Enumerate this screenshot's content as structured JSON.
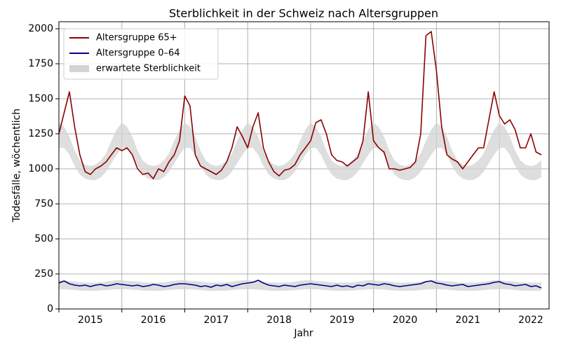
{
  "chart_data": {
    "type": "line",
    "title": "Sterblichkeit in der Schweiz nach Altersgruppen",
    "xlabel": "Jahr",
    "ylabel": "Todesfälle, wöchentlich",
    "xlim": [
      2015,
      2022.79
    ],
    "ylim": [
      0,
      2050
    ],
    "yticks": [
      0,
      250,
      500,
      750,
      1000,
      1250,
      1500,
      1750,
      2000
    ],
    "xticks": [
      {
        "value": 2015.5,
        "label": "2015"
      },
      {
        "value": 2016.5,
        "label": "2016"
      },
      {
        "value": 2017.5,
        "label": "2017"
      },
      {
        "value": 2018.5,
        "label": "2018"
      },
      {
        "value": 2019.5,
        "label": "2019"
      },
      {
        "value": 2020.5,
        "label": "2020"
      },
      {
        "value": 2021.5,
        "label": "2021"
      },
      {
        "value": 2022.5,
        "label": "2022"
      }
    ],
    "xgrid": [
      2015,
      2016,
      2017,
      2018,
      2019,
      2020,
      2021,
      2022
    ],
    "grid": true,
    "legend": "upper left",
    "x": [
      2015,
      2015.083,
      2015.167,
      2015.25,
      2015.333,
      2015.417,
      2015.5,
      2015.583,
      2015.667,
      2015.75,
      2015.833,
      2015.917,
      2016,
      2016.083,
      2016.167,
      2016.25,
      2016.333,
      2016.417,
      2016.5,
      2016.583,
      2016.667,
      2016.75,
      2016.833,
      2016.917,
      2017,
      2017.083,
      2017.167,
      2017.25,
      2017.333,
      2017.417,
      2017.5,
      2017.583,
      2017.667,
      2017.75,
      2017.833,
      2017.917,
      2018,
      2018.083,
      2018.167,
      2018.25,
      2018.333,
      2018.417,
      2018.5,
      2018.583,
      2018.667,
      2018.75,
      2018.833,
      2018.917,
      2019,
      2019.083,
      2019.167,
      2019.25,
      2019.333,
      2019.417,
      2019.5,
      2019.583,
      2019.667,
      2019.75,
      2019.833,
      2019.917,
      2020,
      2020.083,
      2020.167,
      2020.25,
      2020.333,
      2020.417,
      2020.5,
      2020.583,
      2020.667,
      2020.75,
      2020.833,
      2020.917,
      2021,
      2021.083,
      2021.167,
      2021.25,
      2021.333,
      2021.417,
      2021.5,
      2021.583,
      2021.667,
      2021.75,
      2021.833,
      2021.917,
      2022,
      2022.083,
      2022.167,
      2022.25,
      2022.333,
      2022.417,
      2022.5,
      2022.583,
      2022.667
    ],
    "bands": {
      "name": "erwartete Sterblichkeit",
      "color": "#d3d3d3",
      "ranges": [
        {
          "lower": [
            1150,
            1150,
            1100,
            1020,
            960,
            930,
            920,
            920,
            940,
            980,
            1040,
            1100,
            1150,
            1150,
            1100,
            1020,
            960,
            930,
            920,
            920,
            940,
            980,
            1040,
            1100,
            1150,
            1150,
            1100,
            1020,
            960,
            930,
            920,
            920,
            940,
            980,
            1040,
            1100,
            1150,
            1150,
            1100,
            1020,
            960,
            930,
            920,
            920,
            940,
            980,
            1040,
            1100,
            1150,
            1150,
            1100,
            1020,
            960,
            930,
            920,
            920,
            940,
            980,
            1040,
            1100,
            1150,
            1150,
            1100,
            1020,
            960,
            930,
            920,
            920,
            940,
            980,
            1040,
            1100,
            1150,
            1150,
            1100,
            1020,
            960,
            930,
            920,
            920,
            940,
            980,
            1040,
            1100,
            1150,
            1150,
            1100,
            1020,
            960,
            930,
            920,
            920,
            940
          ],
          "upper": [
            1330,
            1300,
            1230,
            1130,
            1060,
            1030,
            1020,
            1030,
            1060,
            1110,
            1200,
            1280,
            1330,
            1300,
            1230,
            1130,
            1060,
            1030,
            1020,
            1030,
            1060,
            1110,
            1200,
            1280,
            1330,
            1300,
            1230,
            1130,
            1060,
            1030,
            1020,
            1030,
            1060,
            1110,
            1200,
            1280,
            1330,
            1300,
            1230,
            1130,
            1060,
            1030,
            1020,
            1030,
            1060,
            1110,
            1200,
            1280,
            1330,
            1300,
            1230,
            1130,
            1060,
            1030,
            1020,
            1030,
            1060,
            1110,
            1200,
            1280,
            1330,
            1300,
            1230,
            1130,
            1060,
            1030,
            1020,
            1030,
            1060,
            1110,
            1200,
            1280,
            1330,
            1300,
            1230,
            1130,
            1060,
            1030,
            1020,
            1030,
            1060,
            1110,
            1200,
            1280,
            1330,
            1300,
            1230,
            1130,
            1060,
            1030,
            1020,
            1030,
            1060
          ]
        },
        {
          "lower": [
            140,
            140,
            138,
            135,
            132,
            130,
            130,
            130,
            132,
            135,
            138,
            140,
            140,
            140,
            138,
            135,
            132,
            130,
            130,
            130,
            132,
            135,
            138,
            140,
            140,
            140,
            138,
            135,
            132,
            130,
            130,
            130,
            132,
            135,
            138,
            140,
            140,
            140,
            138,
            135,
            132,
            130,
            130,
            130,
            132,
            135,
            138,
            140,
            140,
            140,
            138,
            135,
            132,
            130,
            130,
            130,
            132,
            135,
            138,
            140,
            140,
            140,
            138,
            135,
            132,
            130,
            130,
            130,
            132,
            135,
            138,
            140,
            140,
            140,
            138,
            135,
            132,
            130,
            130,
            130,
            132,
            135,
            138,
            140,
            140,
            140,
            138,
            135,
            132,
            130,
            130,
            130,
            132
          ],
          "upper": [
            205,
            200,
            198,
            195,
            190,
            188,
            188,
            188,
            190,
            195,
            200,
            205,
            205,
            200,
            198,
            195,
            190,
            188,
            188,
            188,
            190,
            195,
            200,
            205,
            205,
            200,
            198,
            195,
            190,
            188,
            188,
            188,
            190,
            195,
            200,
            205,
            205,
            200,
            198,
            195,
            190,
            188,
            188,
            188,
            190,
            195,
            200,
            205,
            205,
            200,
            198,
            195,
            190,
            188,
            188,
            188,
            190,
            195,
            200,
            205,
            205,
            200,
            198,
            195,
            190,
            188,
            188,
            188,
            190,
            195,
            200,
            205,
            205,
            200,
            198,
            195,
            190,
            188,
            188,
            188,
            190,
            195,
            200,
            205,
            205,
            200,
            198,
            195,
            190,
            188,
            188,
            188,
            190
          ]
        }
      ]
    },
    "series": [
      {
        "name": "Altersgruppe 65+",
        "color": "#8b0000",
        "values": [
          1250,
          1400,
          1550,
          1300,
          1100,
          980,
          960,
          1000,
          1020,
          1050,
          1100,
          1150,
          1130,
          1150,
          1100,
          1000,
          960,
          970,
          930,
          1000,
          980,
          1050,
          1100,
          1200,
          1520,
          1450,
          1100,
          1020,
          1000,
          980,
          960,
          990,
          1050,
          1150,
          1300,
          1230,
          1150,
          1300,
          1400,
          1150,
          1050,
          980,
          950,
          990,
          1000,
          1030,
          1100,
          1150,
          1200,
          1330,
          1350,
          1250,
          1100,
          1060,
          1050,
          1020,
          1050,
          1080,
          1200,
          1550,
          1200,
          1150,
          1120,
          1000,
          1000,
          990,
          1000,
          1010,
          1050,
          1250,
          1950,
          1980,
          1700,
          1300,
          1100,
          1070,
          1050,
          1000,
          1050,
          1100,
          1150,
          1150,
          1350,
          1550,
          1380,
          1320,
          1350,
          1280,
          1150,
          1150,
          1250,
          1120,
          1100
        ]
      },
      {
        "name": "Altersgruppe 0–64",
        "color": "#00008b",
        "values": [
          185,
          200,
          180,
          170,
          165,
          170,
          160,
          170,
          175,
          165,
          170,
          180,
          175,
          170,
          165,
          170,
          160,
          165,
          175,
          170,
          160,
          165,
          175,
          180,
          180,
          175,
          170,
          160,
          165,
          155,
          170,
          165,
          175,
          160,
          170,
          180,
          185,
          190,
          205,
          185,
          170,
          165,
          160,
          170,
          165,
          160,
          170,
          175,
          180,
          175,
          170,
          165,
          160,
          170,
          160,
          165,
          155,
          170,
          165,
          180,
          175,
          170,
          180,
          175,
          165,
          160,
          165,
          170,
          175,
          180,
          195,
          200,
          185,
          180,
          170,
          165,
          170,
          175,
          160,
          165,
          170,
          175,
          180,
          190,
          195,
          180,
          175,
          165,
          170,
          175,
          160,
          165,
          150
        ]
      }
    ]
  }
}
